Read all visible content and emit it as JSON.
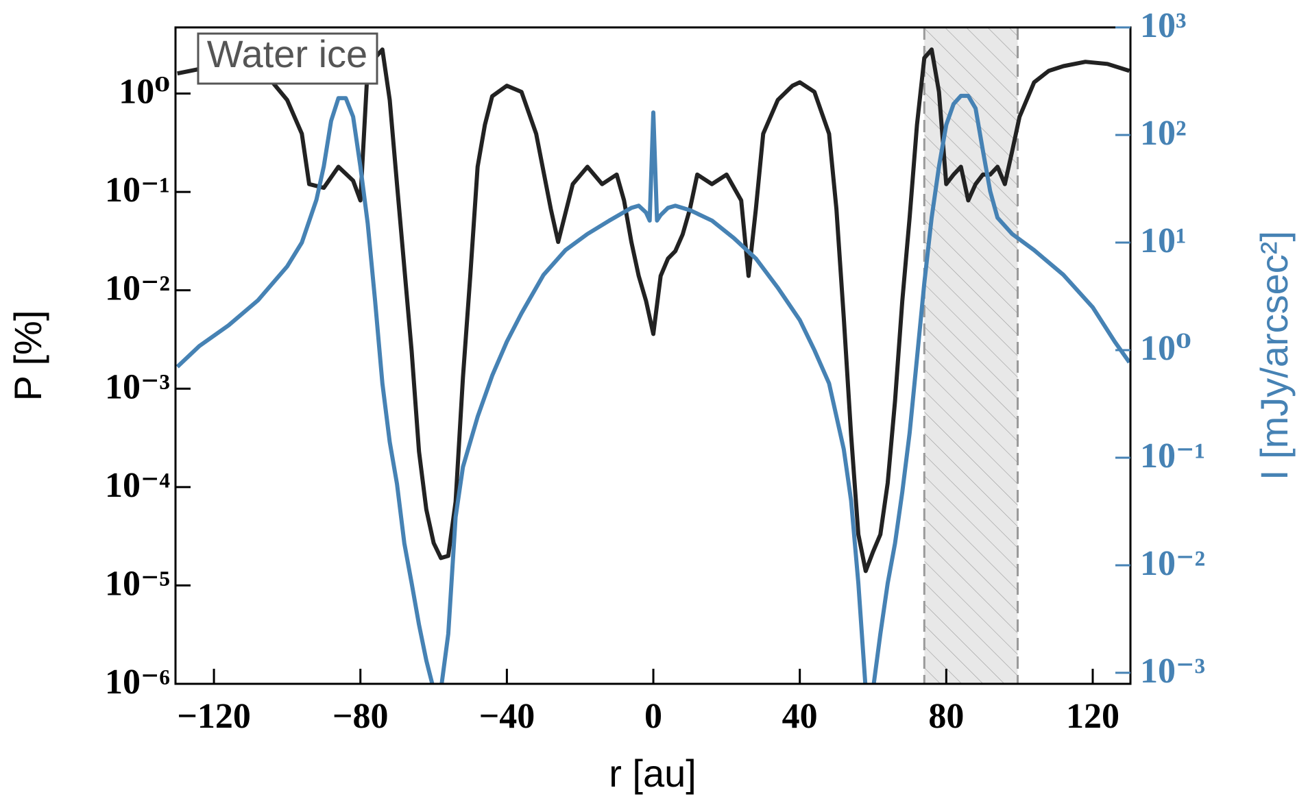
{
  "chart_data": {
    "type": "line",
    "xlabel": "r [au]",
    "ylabel": "P [%]",
    "y2label": "I [mJy/arcsec²]",
    "annotation": "Water ice",
    "xlim": [
      -130.5,
      130.3
    ],
    "xticks": [
      {
        "value": -120,
        "label": "−120"
      },
      {
        "value": -80,
        "label": "−80"
      },
      {
        "value": -40,
        "label": "−40"
      },
      0,
      40,
      80,
      120
    ],
    "yscale": "log",
    "ylim": [
      1e-06,
      4.7
    ],
    "yticks": [
      {
        "value": 1,
        "label": "10⁰"
      },
      {
        "value": 0.1,
        "label": "10⁻¹"
      },
      {
        "value": 0.01,
        "label": "10⁻²"
      },
      {
        "value": 0.001,
        "label": "10⁻³"
      },
      {
        "value": 0.0001,
        "label": "10⁻⁴"
      },
      {
        "value": 1e-05,
        "label": "10⁻⁵"
      },
      {
        "value": 1e-06,
        "label": "10⁻⁶"
      }
    ],
    "y2scale": "log",
    "y2lim": [
      0.00079,
      1000
    ],
    "y2ticks": [
      {
        "value": 1000,
        "label": "10³"
      },
      {
        "value": 100,
        "label": "10²"
      },
      {
        "value": 10,
        "label": "10¹"
      },
      {
        "value": 1,
        "label": "10⁰"
      },
      {
        "value": 0.1,
        "label": "10⁻¹"
      },
      {
        "value": 0.01,
        "label": "10⁻²"
      },
      {
        "value": 0.001,
        "label": "10⁻³"
      }
    ],
    "y2color": "#4682b4",
    "shade": [
      74,
      99.5
    ],
    "series": [
      {
        "color": "#222222",
        "x": [
          -130,
          -120,
          -110,
          -104,
          -100,
          -96,
          -94,
          -90,
          -86,
          -82,
          -80,
          -78,
          -74,
          -72,
          -70,
          -68,
          -66,
          -64,
          -62,
          -60,
          -58,
          -56,
          -54,
          -52,
          -50,
          -48,
          -46,
          -44,
          -40,
          -36,
          -32,
          -28,
          -26,
          -22,
          -18,
          -14,
          -10,
          -8,
          -6,
          -4,
          -2,
          0,
          2,
          4,
          6,
          8,
          10,
          12,
          16,
          20,
          24,
          26,
          28,
          30,
          34,
          38,
          40,
          44,
          48,
          50,
          52,
          54,
          56,
          58,
          60,
          62,
          64,
          66,
          68,
          70,
          72,
          74,
          76,
          78,
          80,
          82,
          84,
          86,
          88,
          90,
          92,
          94,
          96,
          98,
          100,
          104,
          108,
          112,
          118,
          124,
          130
        ],
        "values": [
          1.6,
          1.9,
          1.7,
          1.3,
          0.86,
          0.39,
          0.12,
          0.11,
          0.18,
          0.13,
          0.082,
          1.9,
          2.8,
          0.86,
          0.12,
          0.017,
          0.0024,
          0.00023,
          5.9e-05,
          2.7e-05,
          1.9e-05,
          2e-05,
          7.1e-05,
          0.0013,
          0.014,
          0.18,
          0.48,
          0.94,
          1.2,
          1.04,
          0.39,
          0.067,
          0.031,
          0.12,
          0.18,
          0.12,
          0.15,
          0.082,
          0.031,
          0.014,
          0.0078,
          0.0036,
          0.014,
          0.021,
          0.025,
          0.037,
          0.067,
          0.15,
          0.12,
          0.15,
          0.082,
          0.014,
          0.067,
          0.39,
          0.86,
          1.2,
          1.3,
          1.04,
          0.39,
          0.067,
          0.0053,
          0.00034,
          3.3e-05,
          1.4e-05,
          2.2e-05,
          3.3e-05,
          0.00011,
          0.00075,
          0.0078,
          0.055,
          0.48,
          2.3,
          2.8,
          1.04,
          0.12,
          0.15,
          0.18,
          0.082,
          0.12,
          0.15,
          0.15,
          0.18,
          0.12,
          0.26,
          0.58,
          1.3,
          1.7,
          1.9,
          2.1,
          2.0,
          1.7
        ]
      },
      {
        "color": "#4682b4",
        "axis": "y2",
        "x": [
          -130,
          -124,
          -116,
          -108,
          -100,
          -96,
          -92,
          -90,
          -88,
          -86,
          -84,
          -82,
          -80,
          -78,
          -76,
          -74,
          -72,
          -70,
          -68,
          -66,
          -64,
          -62,
          -60,
          -58,
          -56,
          -54,
          -52,
          -48,
          -44,
          -40,
          -36,
          -30,
          -24,
          -18,
          -12,
          -6,
          -4,
          -2,
          -1,
          0,
          1,
          2,
          4,
          6,
          10,
          16,
          22,
          28,
          34,
          40,
          44,
          48,
          52,
          54,
          56,
          58,
          60,
          62,
          64,
          66,
          68,
          70,
          72,
          74,
          76,
          78,
          80,
          82,
          84,
          86,
          88,
          90,
          92,
          94,
          98,
          104,
          112,
          120,
          126,
          130
        ],
        "values": [
          0.7,
          1.09,
          1.7,
          2.9,
          6.0,
          10,
          25,
          51,
          135,
          220,
          220,
          148,
          51,
          15,
          2.9,
          0.49,
          0.14,
          0.057,
          0.016,
          0.0068,
          0.0028,
          0.0013,
          0.0007,
          0.0007,
          0.0023,
          0.028,
          0.082,
          0.24,
          0.58,
          1.2,
          2.2,
          5.0,
          8.5,
          12,
          16,
          21,
          22,
          19,
          16,
          162,
          16,
          18,
          21,
          22,
          20,
          16,
          11,
          7.1,
          3.8,
          1.9,
          1.0,
          0.49,
          0.12,
          0.04,
          0.0068,
          0.0007,
          0.0007,
          0.0023,
          0.0068,
          0.016,
          0.048,
          0.17,
          0.84,
          4.2,
          17,
          51,
          124,
          194,
          231,
          231,
          177,
          72,
          30,
          17,
          12,
          8.5,
          5.0,
          2.5,
          1.2,
          0.77
        ]
      }
    ]
  }
}
